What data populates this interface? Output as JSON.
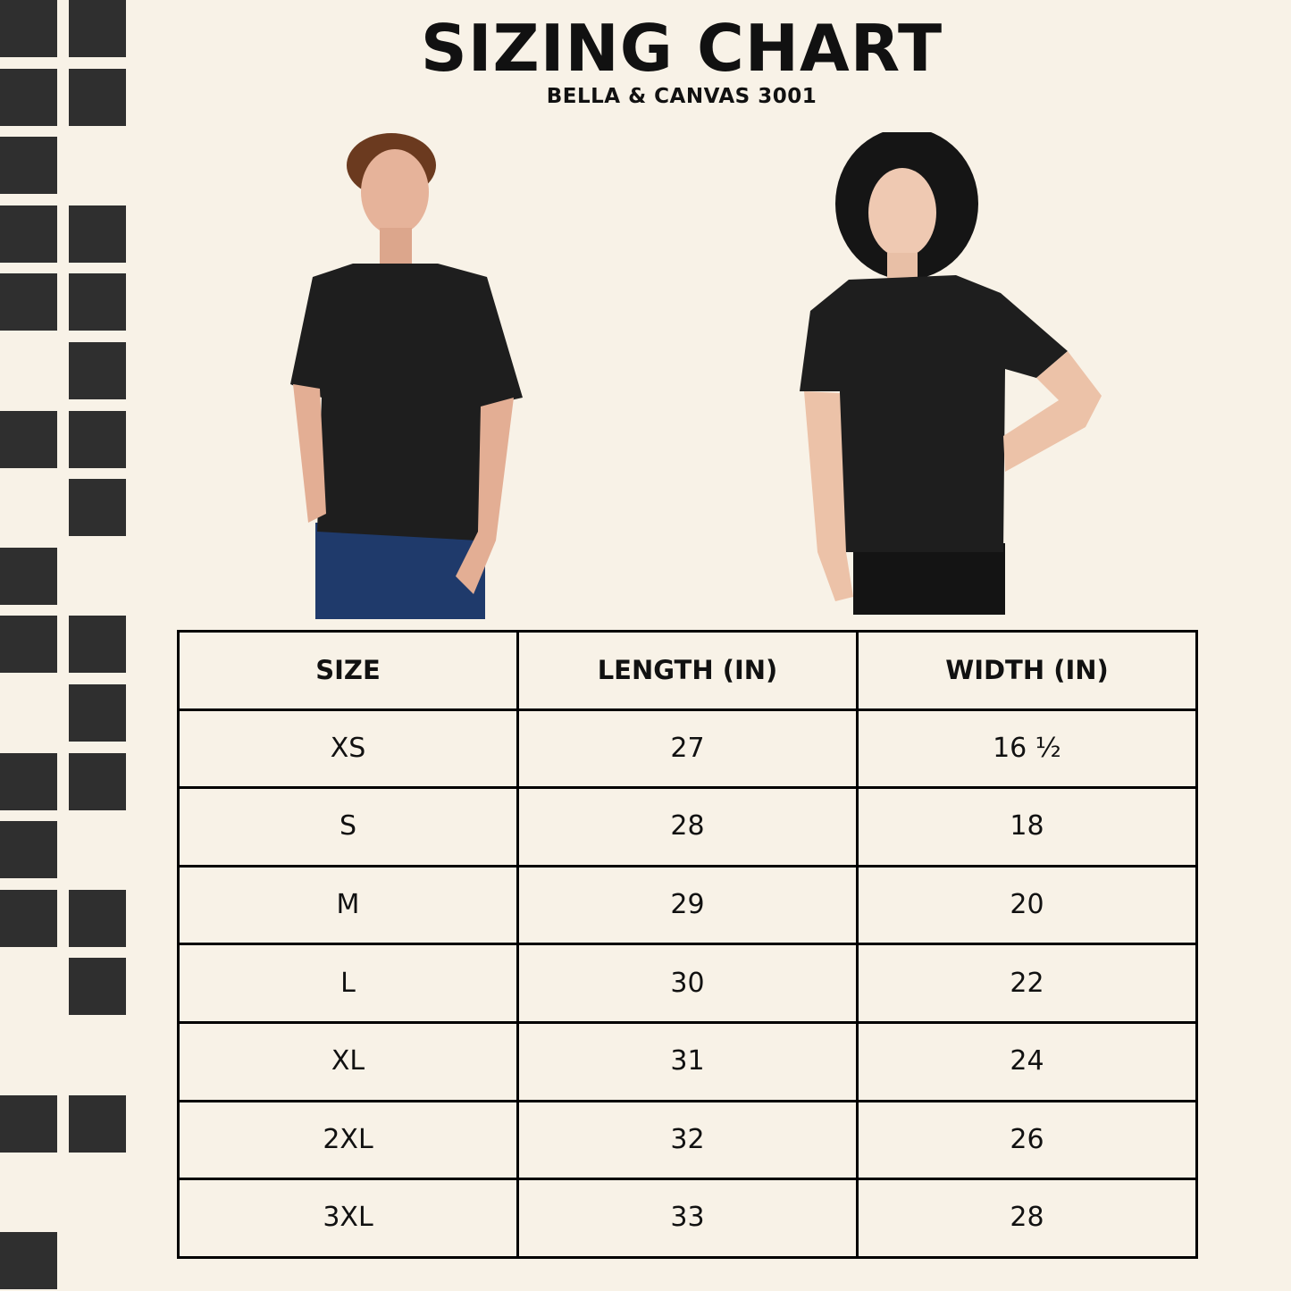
{
  "header": {
    "title": "SIZING CHART",
    "subtitle": "BELLA & CANVAS 3001"
  },
  "colors": {
    "background": "#f8f2e7",
    "squares": "#2f2f2f",
    "shirt": "#1e1e1e"
  },
  "photos": [
    "man-in-black-tshirt",
    "woman-in-black-tshirt"
  ],
  "table": {
    "headers": [
      "SIZE",
      "LENGTH (IN)",
      "WIDTH (IN)"
    ],
    "rows": [
      [
        "XS",
        "27",
        "16 ½"
      ],
      [
        "S",
        "28",
        "18"
      ],
      [
        "M",
        "29",
        "20"
      ],
      [
        "L",
        "30",
        "22"
      ],
      [
        "XL",
        "31",
        "24"
      ],
      [
        "2XL",
        "32",
        "26"
      ],
      [
        "3XL",
        "33",
        "28"
      ]
    ]
  }
}
